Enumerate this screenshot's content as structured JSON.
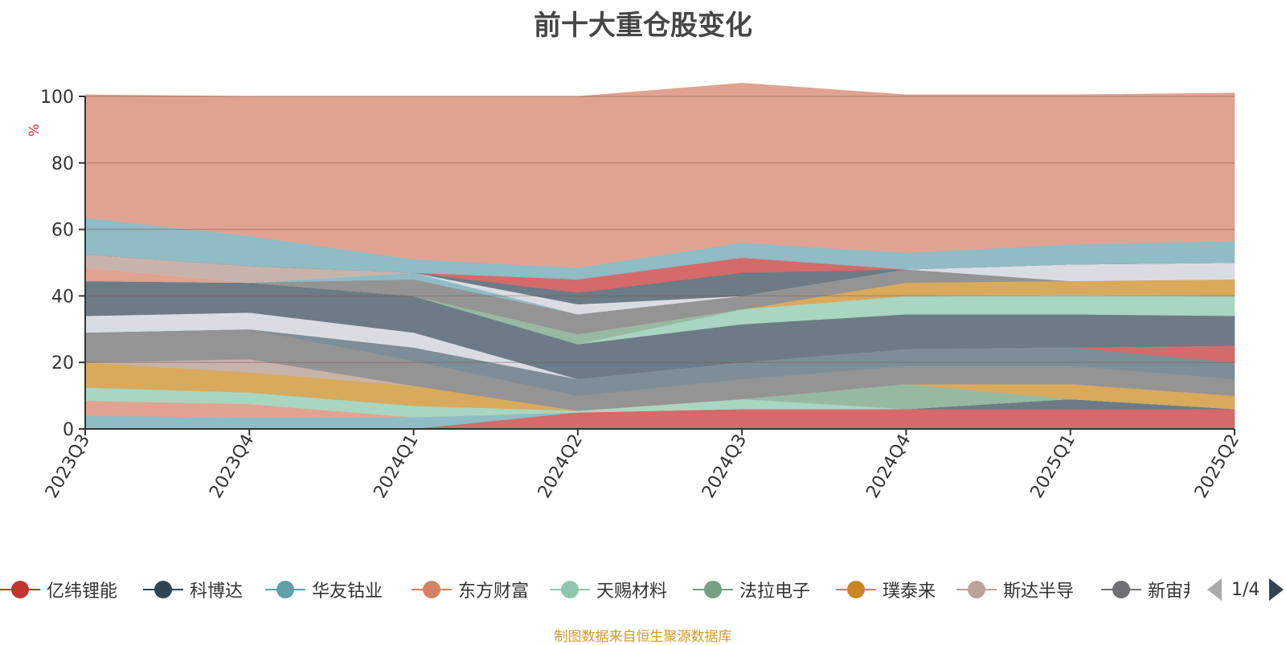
{
  "title": "前十大重仓股变化",
  "footer_note": "制图数据来自恒生聚源数据库",
  "chart_data": {
    "type": "area",
    "stacked": true,
    "x": [
      "2023Q3",
      "2023Q4",
      "2024Q1",
      "2024Q2",
      "2024Q3",
      "2024Q4",
      "2025Q1",
      "2025Q2"
    ],
    "ylabel": "%",
    "ylim": [
      0,
      100
    ],
    "yticks": [
      0,
      20,
      40,
      60,
      80,
      100
    ],
    "grid": true,
    "series": [
      {
        "name": "亿纬锂能",
        "color": "#d46a6a",
        "values": [
          0,
          0,
          0,
          5,
          6,
          6,
          6,
          6
        ]
      },
      {
        "name": "科博达",
        "color": "#6c7b86",
        "values": [
          0,
          0,
          0,
          0,
          0,
          0,
          3,
          0
        ]
      },
      {
        "name": "华友钴业",
        "color": "#8fbcc5",
        "values": [
          4,
          3.5,
          3.5,
          0,
          0,
          0,
          0,
          0
        ]
      },
      {
        "name": "东方财富",
        "color": "#e0a391",
        "values": [
          4.5,
          4,
          0,
          0,
          0,
          0,
          0,
          0
        ]
      },
      {
        "name": "天赐材料",
        "color": "#a8d6c1",
        "values": [
          4,
          3.5,
          3.5,
          0.5,
          3,
          0,
          0,
          0
        ]
      },
      {
        "name": "法拉电子",
        "color": "#97b9a2",
        "values": [
          0,
          0,
          0,
          0,
          0,
          7.5,
          0,
          0
        ]
      },
      {
        "name": "璞泰来",
        "color": "#d9a95c",
        "values": [
          7.5,
          6,
          6,
          0,
          0,
          0,
          4.5,
          4
        ]
      },
      {
        "name": "斯达半导",
        "color": "#c8b3aa",
        "values": [
          0,
          4,
          0,
          0,
          0,
          0,
          0,
          0
        ]
      },
      {
        "name": "新宙邦",
        "color": "#949494",
        "values": [
          9,
          9,
          7.5,
          4.5,
          6,
          5.5,
          5.5,
          5
        ]
      },
      {
        "name": "",
        "color": "#7d8e98",
        "values": [
          0,
          0,
          4,
          5,
          5,
          5,
          5.5,
          5
        ]
      },
      {
        "name": "",
        "color": "#d46a6a",
        "values": [
          0,
          0,
          0,
          0,
          0,
          0,
          0,
          5
        ]
      },
      {
        "name": "",
        "color": "#6c7b86",
        "values": [
          0,
          0,
          0,
          0,
          0,
          0,
          0,
          0
        ]
      },
      {
        "name": "",
        "color": "#d9dde3",
        "values": [
          5,
          5,
          4.5,
          0,
          0,
          0,
          0,
          0
        ]
      },
      {
        "name": "",
        "color": "#6c7b86",
        "values": [
          10.5,
          9,
          11,
          10.5,
          11.5,
          10.5,
          10,
          9
        ]
      },
      {
        "name": "",
        "color": "#a8d6c1",
        "values": [
          0,
          0,
          0,
          0,
          4.5,
          5.5,
          6,
          6
        ]
      },
      {
        "name": "",
        "color": "#97b9a2",
        "values": [
          0,
          0,
          0,
          3,
          0,
          0,
          0,
          0
        ]
      },
      {
        "name": "",
        "color": "#d9a95c",
        "values": [
          0,
          0,
          0,
          0,
          0,
          4,
          4,
          5
        ]
      },
      {
        "name": "",
        "color": "#949494",
        "values": [
          0,
          0,
          5,
          6,
          4,
          4,
          0,
          0
        ]
      },
      {
        "name": "",
        "color": "#8fbcc5",
        "values": [
          0,
          0,
          2,
          0,
          0,
          0,
          0,
          0
        ]
      },
      {
        "name": "",
        "color": "#e0a391",
        "values": [
          4,
          0,
          0,
          0,
          0,
          0,
          0,
          0
        ]
      },
      {
        "name": "",
        "color": "#d9dde3",
        "values": [
          0,
          0,
          0,
          3,
          0,
          0,
          5,
          5
        ]
      },
      {
        "name": "",
        "color": "#c8b3aa",
        "values": [
          4,
          5,
          0,
          0,
          0,
          0,
          0,
          0
        ]
      },
      {
        "name": "",
        "color": "#6c7b86",
        "values": [
          0,
          0,
          0,
          3.5,
          7,
          0,
          0,
          0
        ]
      },
      {
        "name": "",
        "color": "#d46a6a",
        "values": [
          0,
          0,
          0,
          4,
          4.5,
          0,
          0,
          0
        ]
      },
      {
        "name": "",
        "color": "#8fbcc5",
        "values": [
          11,
          9,
          4,
          3.5,
          4.5,
          5,
          6,
          6.5
        ]
      },
      {
        "name": "",
        "color": "#e0a391",
        "values": [
          37,
          42,
          49,
          51.5,
          48,
          47.5,
          45,
          44.5
        ]
      }
    ]
  },
  "legend": {
    "items": [
      {
        "label": "亿纬锂能",
        "color": "#c23531"
      },
      {
        "label": "科博达",
        "color": "#2f4554"
      },
      {
        "label": "华友钴业",
        "color": "#61a0a8"
      },
      {
        "label": "东方财富",
        "color": "#d48265"
      },
      {
        "label": "天赐材料",
        "color": "#91c7ae"
      },
      {
        "label": "法拉电子",
        "color": "#749f83"
      },
      {
        "label": "璞泰来",
        "color": "#ca8622"
      },
      {
        "label": "斯达半导",
        "color": "#bda29a"
      },
      {
        "label": "新宙邦",
        "color": "#6e7074"
      }
    ],
    "page": "1/4"
  }
}
